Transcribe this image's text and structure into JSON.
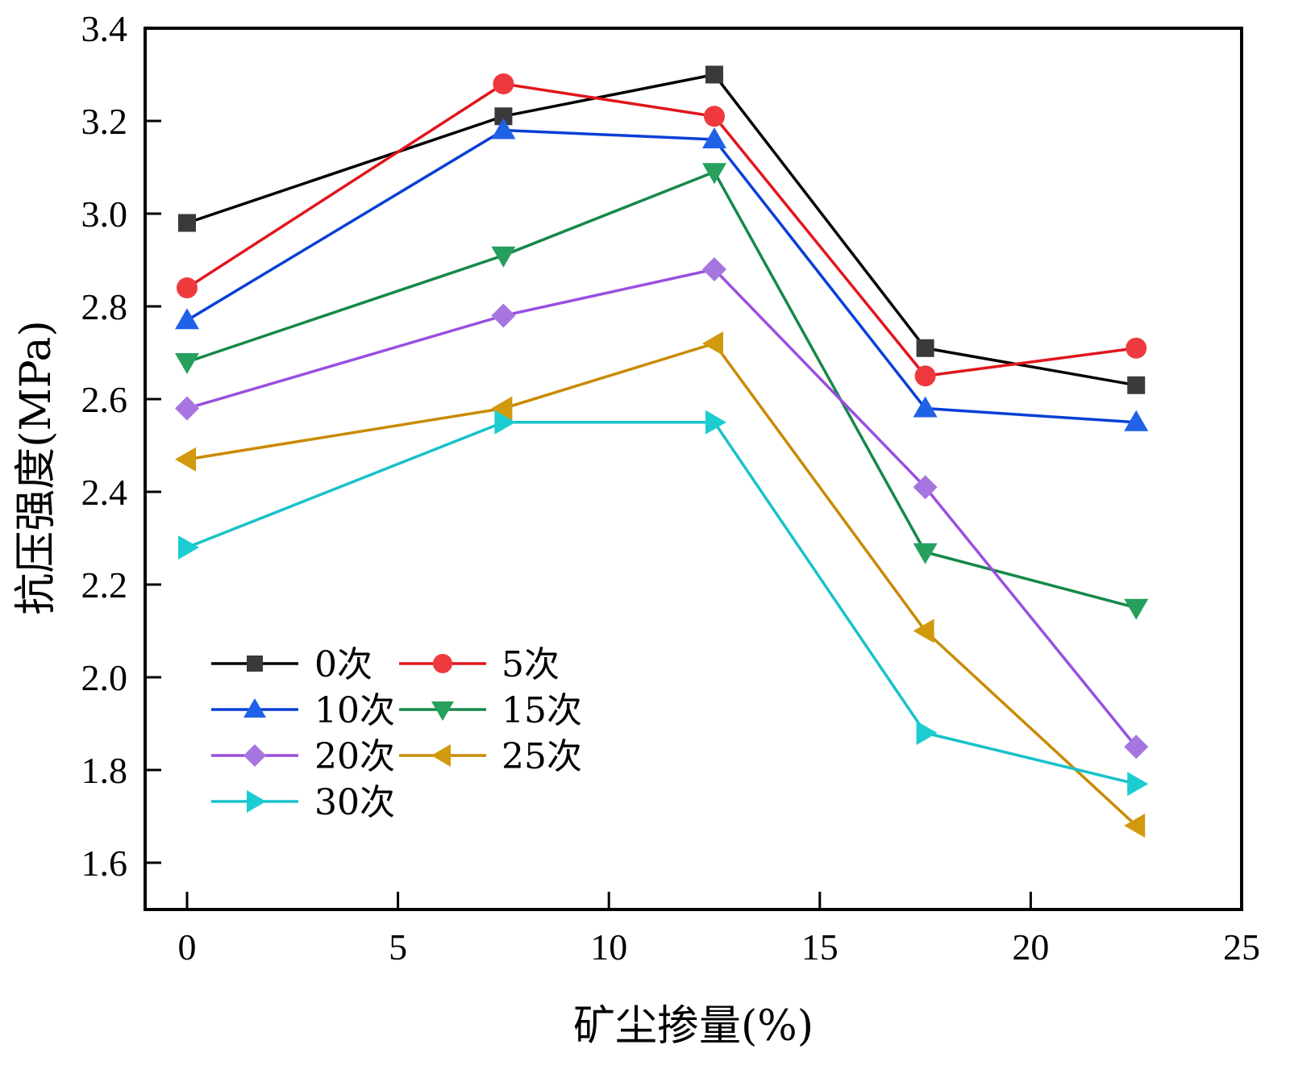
{
  "chart_data": {
    "type": "line",
    "title": "",
    "xlabel": "矿尘掺量(%)",
    "ylabel": "抗压强度(MPa)",
    "xlim": [
      -1,
      25
    ],
    "ylim": [
      1.5,
      3.4
    ],
    "x_ticks": [
      0,
      5,
      10,
      15,
      20,
      25
    ],
    "x_tick_labels": [
      "0",
      "5",
      "10",
      "15",
      "20",
      "25"
    ],
    "y_ticks": [
      1.6,
      1.8,
      2.0,
      2.2,
      2.4,
      2.6,
      2.8,
      3.0,
      3.2,
      3.4
    ],
    "y_tick_labels": [
      "1.6",
      "1.8",
      "2.0",
      "2.2",
      "2.4",
      "2.6",
      "2.8",
      "3.0",
      "3.2",
      "3.4"
    ],
    "grid": false,
    "legend_position": "bottom-left",
    "x": [
      0,
      7.5,
      12.5,
      17.5,
      22.5
    ],
    "series": [
      {
        "name": "0次",
        "marker": "square",
        "color": "#000000",
        "marker_color": "#3a3a3a",
        "values": [
          2.98,
          3.21,
          3.3,
          2.71,
          2.63
        ]
      },
      {
        "name": "5次",
        "marker": "circle",
        "color": "#e0161c",
        "marker_color": "#ee3a3f",
        "values": [
          2.84,
          3.28,
          3.21,
          2.65,
          2.71
        ]
      },
      {
        "name": "10次",
        "marker": "triangle-up",
        "color": "#0a3fd6",
        "marker_color": "#1f62e6",
        "values": [
          2.77,
          3.18,
          3.16,
          2.58,
          2.55
        ]
      },
      {
        "name": "15次",
        "marker": "triangle-down",
        "color": "#15884a",
        "marker_color": "#26a05c",
        "values": [
          2.68,
          2.91,
          3.09,
          2.27,
          2.15
        ]
      },
      {
        "name": "20次",
        "marker": "diamond",
        "color": "#9a4fe0",
        "marker_color": "#a775e0",
        "values": [
          2.58,
          2.78,
          2.88,
          2.41,
          1.85
        ]
      },
      {
        "name": "25次",
        "marker": "triangle-left",
        "color": "#c98a00",
        "marker_color": "#d19a0c",
        "values": [
          2.47,
          2.58,
          2.72,
          2.1,
          1.68
        ]
      },
      {
        "name": "30次",
        "marker": "triangle-right",
        "color": "#18c2c8",
        "marker_color": "#1bcdd0",
        "values": [
          2.28,
          2.55,
          2.55,
          1.88,
          1.77
        ]
      }
    ]
  }
}
